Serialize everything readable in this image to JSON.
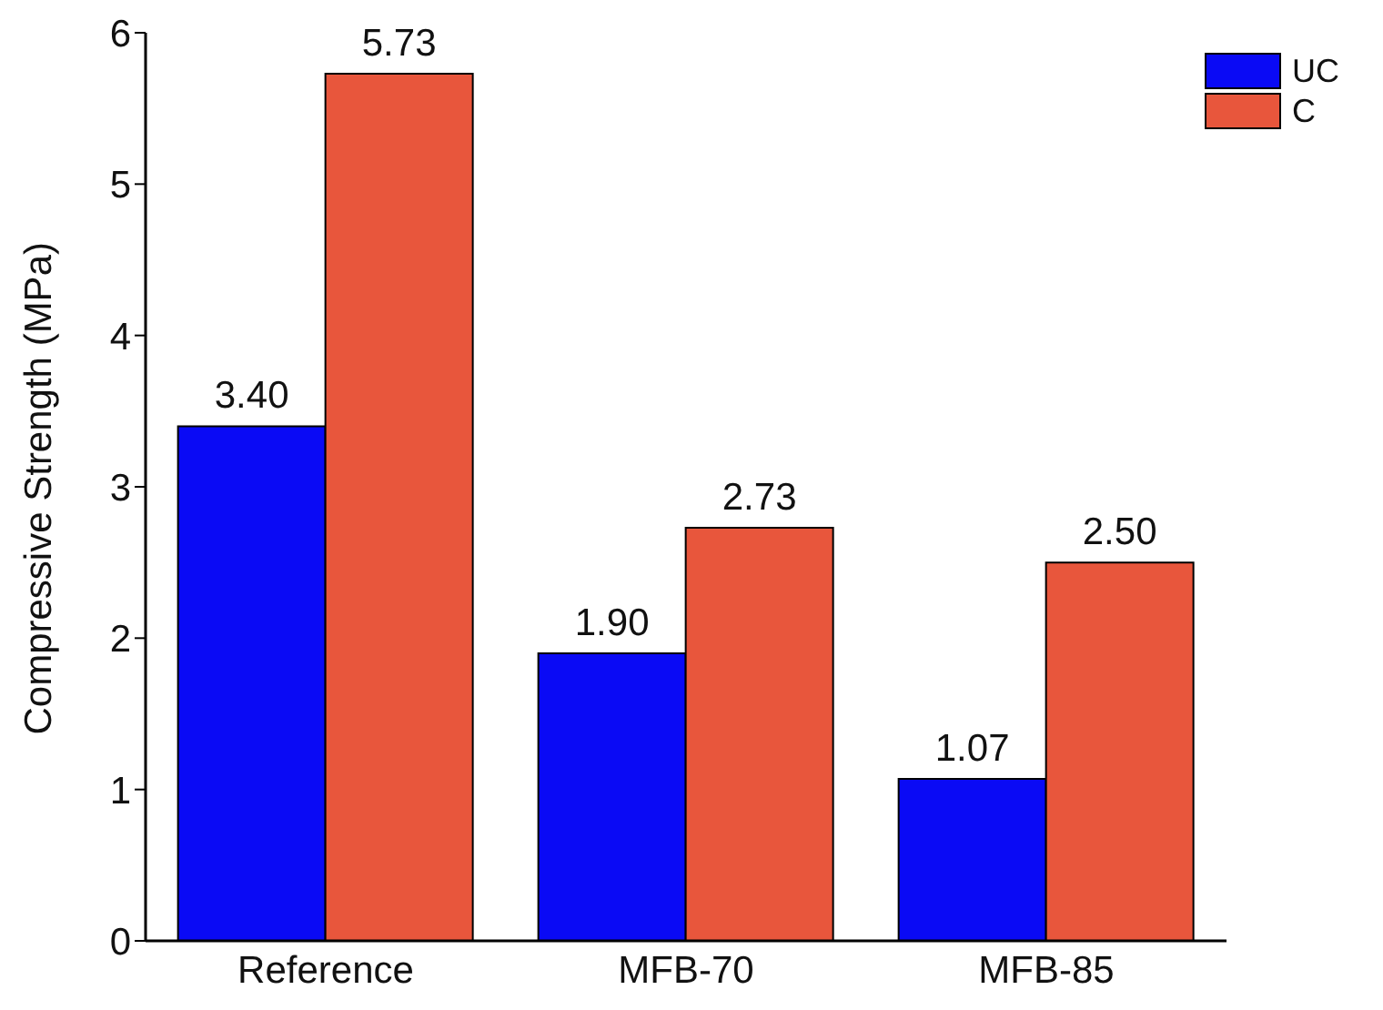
{
  "chart_data": {
    "type": "bar",
    "ylabel": "Compressive Strength (MPa)",
    "categories": [
      "Reference",
      "MFB-70",
      "MFB-85"
    ],
    "series": [
      {
        "name": "UC",
        "color": "#0a0af5",
        "values": [
          3.4,
          1.9,
          1.07
        ],
        "value_labels": [
          "3.40",
          "1.90",
          "1.07"
        ]
      },
      {
        "name": "C",
        "color": "#e8563c",
        "values": [
          5.73,
          2.73,
          2.5
        ],
        "value_labels": [
          "5.73",
          "2.73",
          "2.50"
        ]
      }
    ],
    "ylim": [
      0,
      6
    ],
    "yticks": [
      0,
      1,
      2,
      3,
      4,
      5,
      6
    ],
    "legend": "top right",
    "grid": false
  }
}
